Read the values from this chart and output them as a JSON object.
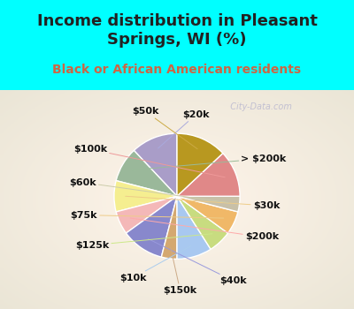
{
  "title": "Income distribution in Pleasant\nSprings, WI (%)",
  "subtitle": "Black or African American residents",
  "labels": [
    "$20k",
    "> $200k",
    "$30k",
    "$200k",
    "$40k",
    "$150k",
    "$10k",
    "$125k",
    "$75k",
    "$60k",
    "$100k",
    "$50k"
  ],
  "sizes": [
    12,
    9,
    8,
    6,
    11,
    4,
    9,
    6,
    6,
    4,
    12,
    13
  ],
  "colors": [
    "#a99dc8",
    "#9ab89a",
    "#f5ee90",
    "#f4b8b8",
    "#8888cc",
    "#d4a870",
    "#a8c8f0",
    "#c8dc80",
    "#f0b868",
    "#c8c0a8",
    "#e08888",
    "#b89820"
  ],
  "bg_chart": "#d0ece0",
  "bg_top": "#00ffff",
  "watermark": "  City-Data.com",
  "title_fontsize": 13,
  "subtitle_fontsize": 10,
  "label_fontsize": 8
}
